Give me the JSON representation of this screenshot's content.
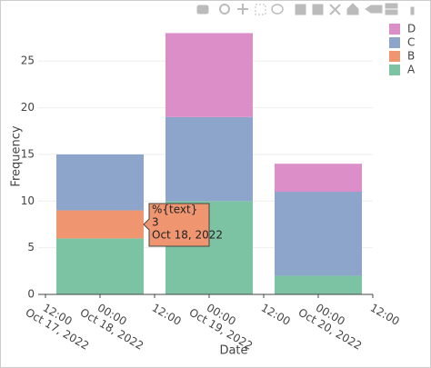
{
  "chart_data": {
    "type": "bar",
    "stacked": true,
    "x_label": "Date",
    "y_label": "Frequency",
    "x": [
      "2022-10-18T00:00",
      "2022-10-19T00:00",
      "2022-10-20T00:00"
    ],
    "series": [
      {
        "name": "A",
        "color": "#7cc3a3",
        "values": [
          6,
          10,
          2
        ]
      },
      {
        "name": "B",
        "color": "#ef9570",
        "values": [
          3,
          0,
          0
        ]
      },
      {
        "name": "C",
        "color": "#8ea5cb",
        "values": [
          6,
          9,
          9
        ]
      },
      {
        "name": "D",
        "color": "#dc8ec8",
        "values": [
          0,
          9,
          3
        ]
      }
    ],
    "xlim": [
      "2022-10-17T10:24",
      "2022-10-20T12:00"
    ],
    "xticks": [
      {
        "value": "2022-10-17T12:00",
        "label": "12:00",
        "sublabel": "Oct 17, 2022"
      },
      {
        "value": "2022-10-18T00:00",
        "label": "00:00",
        "sublabel": "Oct 18, 2022"
      },
      {
        "value": "2022-10-18T12:00",
        "label": "12:00"
      },
      {
        "value": "2022-10-19T00:00",
        "label": "00:00",
        "sublabel": "Oct 19, 2022"
      },
      {
        "value": "2022-10-19T12:00",
        "label": "12:00"
      },
      {
        "value": "2022-10-20T00:00",
        "label": "00:00",
        "sublabel": "Oct 20, 2022"
      },
      {
        "value": "2022-10-20T12:00",
        "label": "12:00"
      }
    ],
    "ylim": [
      0,
      29.5
    ],
    "yticks": [
      0,
      5,
      10,
      15,
      20,
      25
    ],
    "grid": true,
    "legend": "top-right",
    "hover": {
      "series": 1,
      "point": 0,
      "text": "%{text}",
      "value": "3",
      "date": "Oct 18, 2022"
    }
  }
}
